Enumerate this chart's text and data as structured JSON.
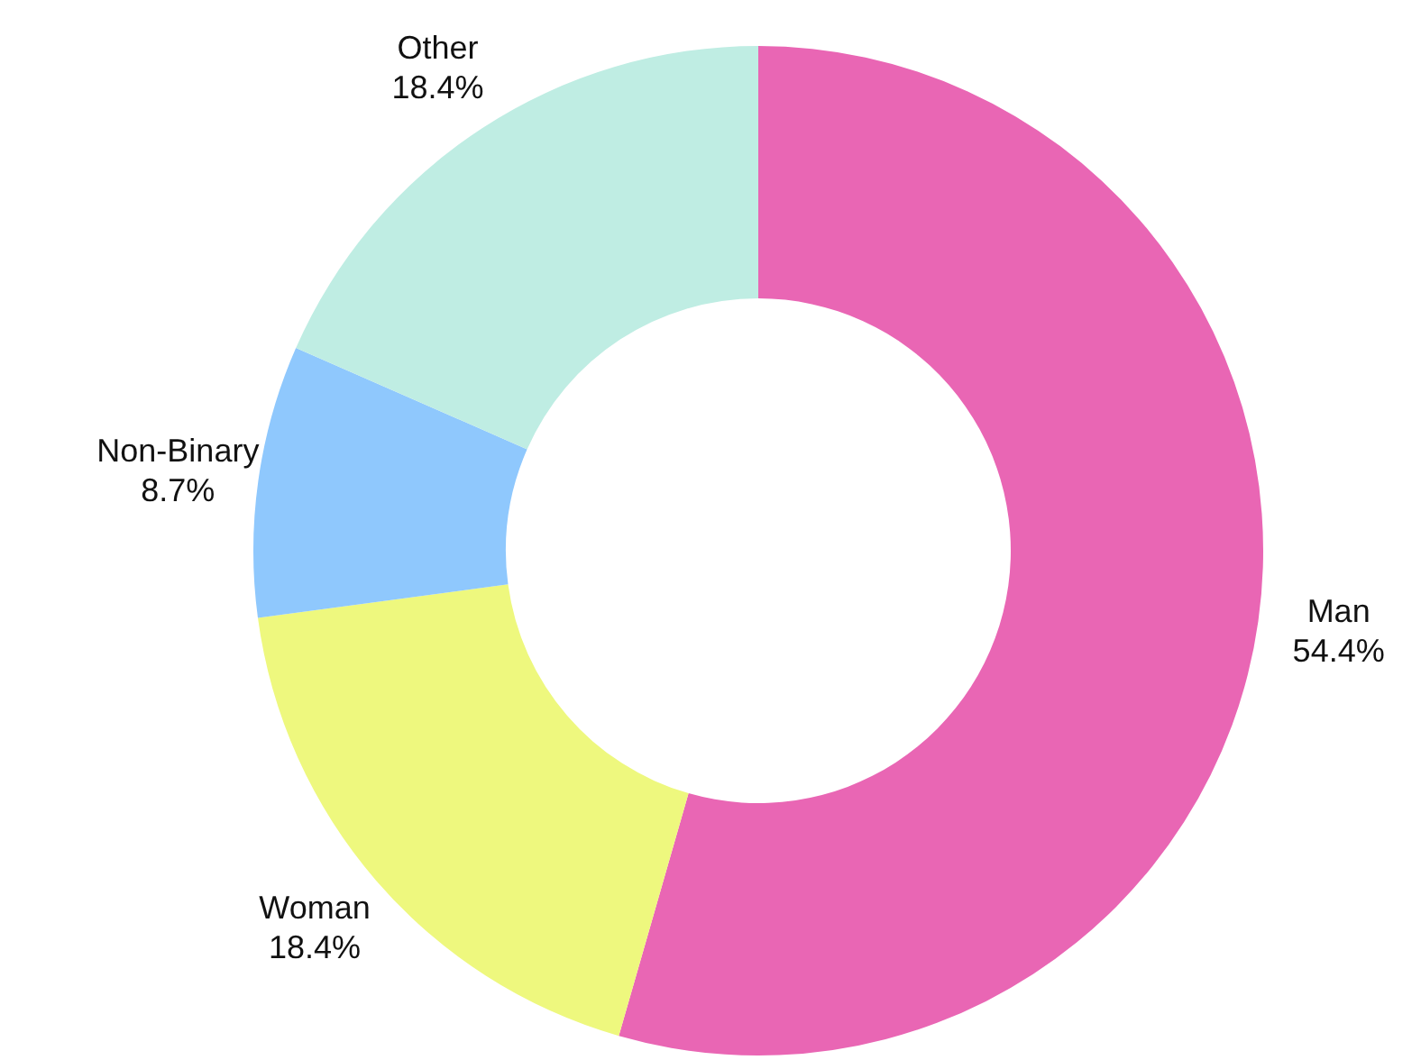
{
  "chart_data": {
    "type": "donut",
    "categories": [
      "Man",
      "Woman",
      "Non-Binary",
      "Other"
    ],
    "values": [
      54.4,
      18.4,
      8.7,
      18.4
    ],
    "colors": [
      "#e966b4",
      "#eef87e",
      "#8fc8fd",
      "#bfede3"
    ],
    "value_labels": [
      "54.4%",
      "18.4%",
      "8.7%",
      "18.4%"
    ]
  }
}
